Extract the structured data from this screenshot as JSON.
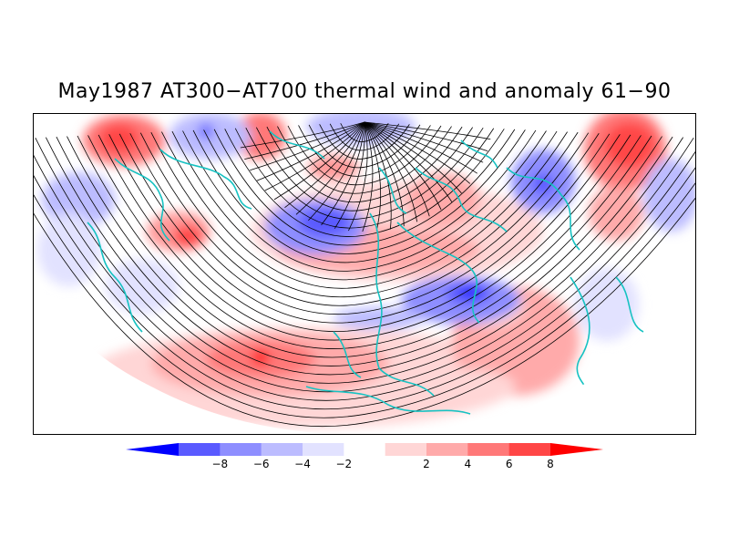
{
  "title": "May1987 AT300−AT700 thermal wind and anomaly 61−90",
  "legend": {
    "tick_labels": [
      "−8",
      "−6",
      "−4",
      "−2",
      "2",
      "4",
      "6",
      "8"
    ],
    "colors": [
      "#0000ff",
      "#5a5aff",
      "#8e8eff",
      "#bcbcff",
      "#e2e2ff",
      "#ffffff",
      "#ffd6d6",
      "#ffaaaa",
      "#ff7878",
      "#ff4646",
      "#ff0000"
    ]
  },
  "map_colors": {
    "frame": "#000000",
    "coastline": "#17c2c2",
    "streamline": "#000000",
    "background": "#ffffff"
  }
}
